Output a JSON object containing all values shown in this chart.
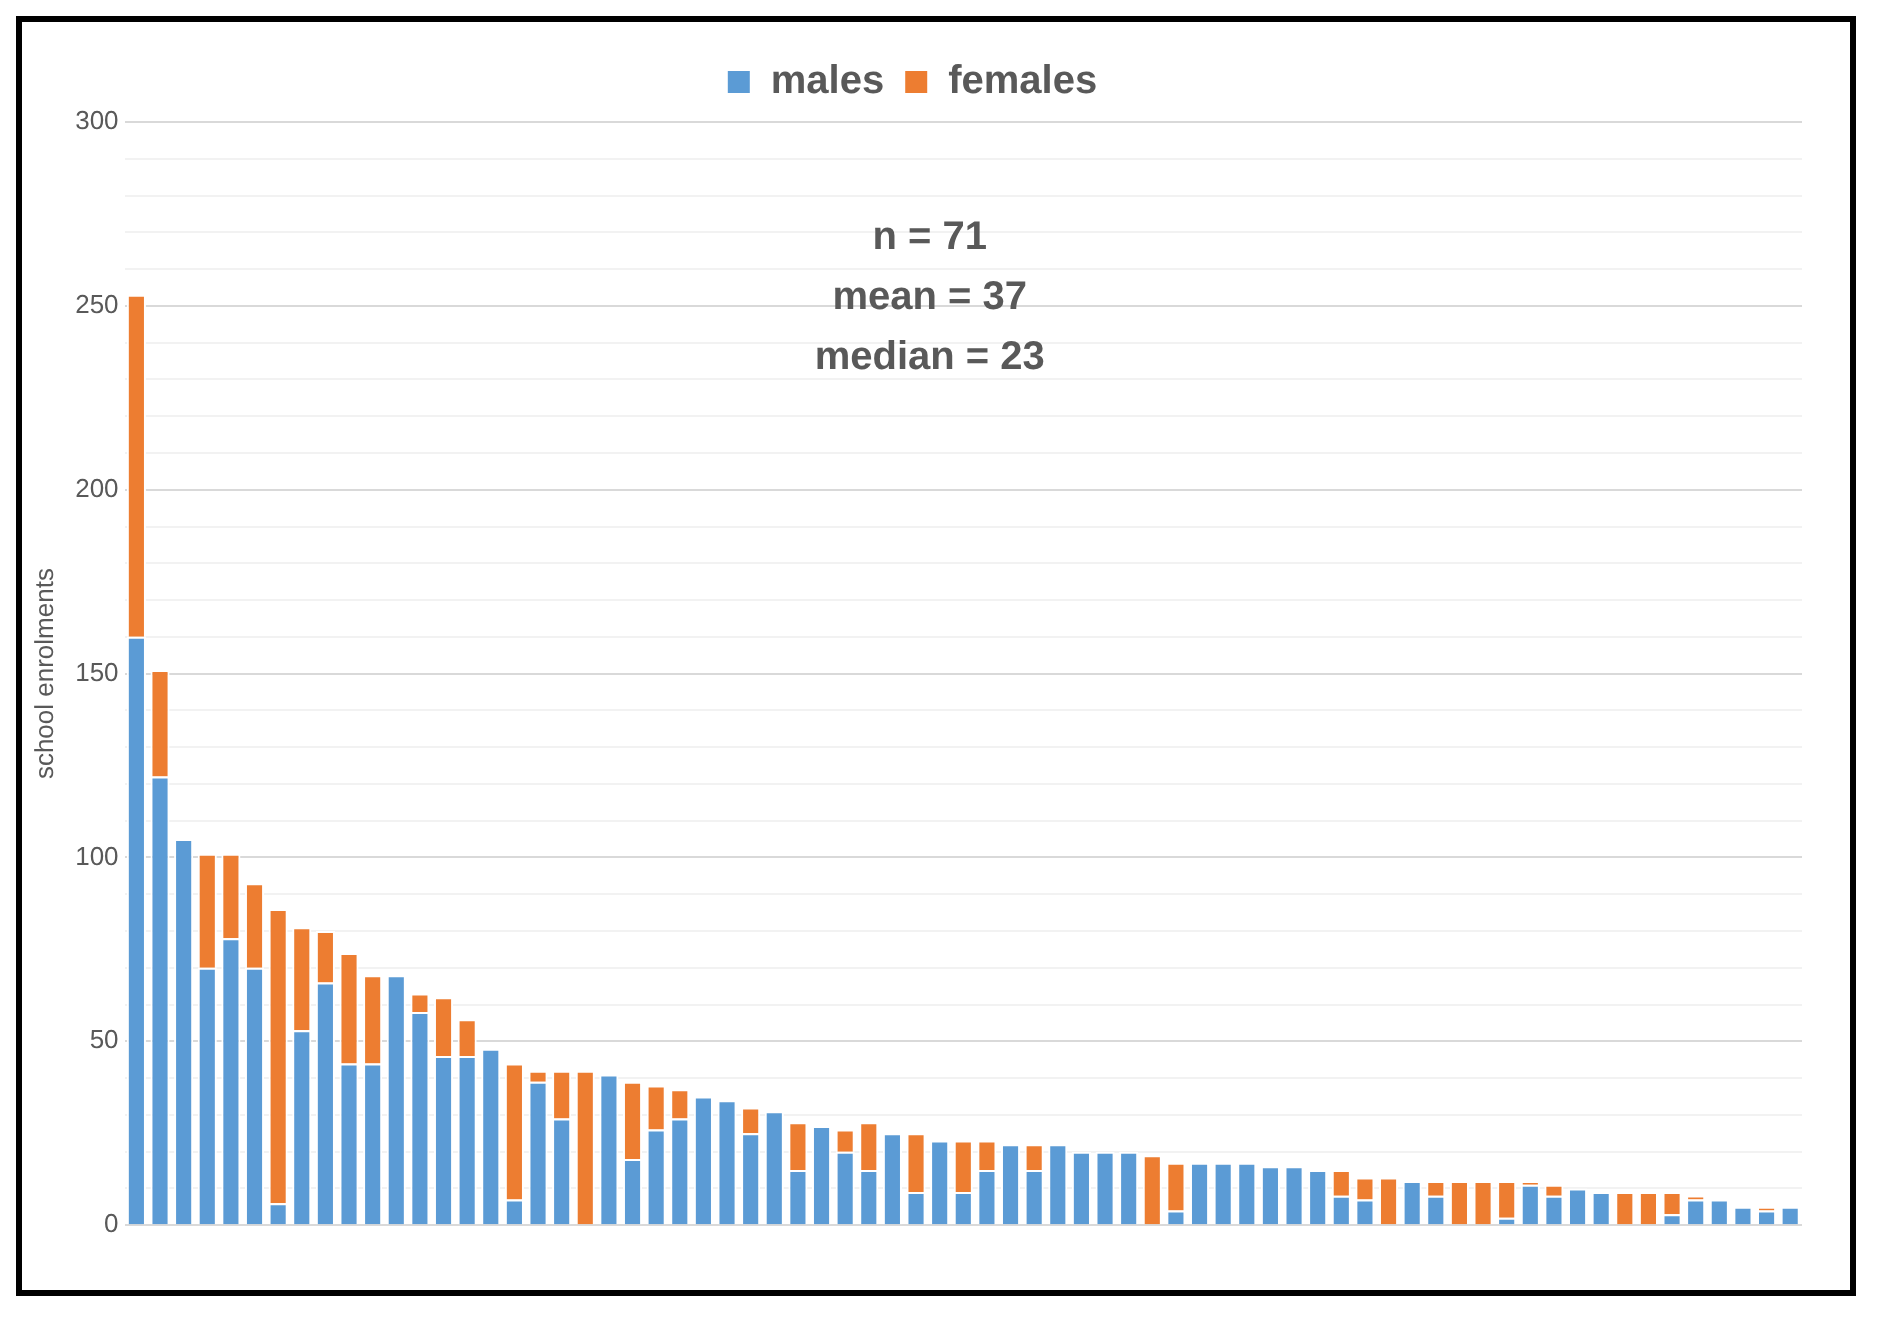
{
  "chart_data": {
    "type": "bar",
    "stacked": true,
    "ylabel": "school enrolments",
    "legend": "top",
    "grid": "y",
    "annotations": [
      "n = 71",
      "mean = 37",
      "median = 23"
    ],
    "categories": [
      null,
      null,
      null,
      null,
      null,
      null,
      null,
      null,
      null,
      null,
      null,
      null,
      null,
      null,
      null,
      null,
      null,
      null,
      null,
      null,
      null,
      null,
      null,
      null,
      null,
      null,
      null,
      null,
      null,
      null,
      null,
      null,
      null,
      null,
      null,
      null,
      null,
      null,
      null,
      null,
      null,
      null,
      null,
      null,
      null,
      null,
      null,
      null,
      null,
      null,
      null,
      null,
      null,
      null,
      null,
      null,
      null,
      null,
      null,
      null,
      null,
      null,
      null,
      null,
      null,
      null,
      null,
      null,
      null,
      null,
      null
    ],
    "ylim": [
      0,
      300
    ],
    "yticks": [
      0,
      {
        "value": 10,
        "label": null
      },
      {
        "value": 20,
        "label": null
      },
      {
        "value": 30,
        "label": null
      },
      {
        "value": 40,
        "label": null
      },
      50,
      {
        "value": 60,
        "label": null
      },
      {
        "value": 70,
        "label": null
      },
      {
        "value": 80,
        "label": null
      },
      {
        "value": 90,
        "label": null
      },
      100,
      {
        "value": 110,
        "label": null
      },
      {
        "value": 120,
        "label": null
      },
      {
        "value": 130,
        "label": null
      },
      {
        "value": 140,
        "label": null
      },
      150,
      {
        "value": 160,
        "label": null
      },
      {
        "value": 170,
        "label": null
      },
      {
        "value": 180,
        "label": null
      },
      {
        "value": 190,
        "label": null
      },
      200,
      {
        "value": 210,
        "label": null
      },
      {
        "value": 220,
        "label": null
      },
      {
        "value": 230,
        "label": null
      },
      {
        "value": 240,
        "label": null
      },
      250,
      {
        "value": 260,
        "label": null
      },
      {
        "value": 270,
        "label": null
      },
      {
        "value": 280,
        "label": null
      },
      {
        "value": 290,
        "label": null
      },
      300
    ],
    "series": [
      {
        "name": "males",
        "color": "#5b9bd5",
        "values": [
          160,
          122,
          105,
          70,
          78,
          70,
          6,
          53,
          66,
          44,
          44,
          68,
          58,
          46,
          46,
          48,
          7,
          39,
          29,
          0,
          41,
          18,
          26,
          29,
          35,
          34,
          25,
          31,
          15,
          27,
          20,
          15,
          25,
          9,
          23,
          9,
          15,
          22,
          15,
          22,
          20,
          20,
          20,
          0,
          4,
          17,
          17,
          17,
          16,
          16,
          15,
          8,
          7,
          0,
          12,
          8,
          0,
          0,
          2,
          11,
          8,
          10,
          9,
          0,
          0,
          3,
          7,
          7,
          5,
          4,
          5
        ]
      },
      {
        "name": "females",
        "color": "#ed7d31",
        "values": [
          93,
          29,
          0,
          31,
          23,
          23,
          80,
          28,
          14,
          30,
          24,
          0,
          5,
          16,
          10,
          0,
          37,
          3,
          13,
          42,
          0,
          21,
          12,
          8,
          0,
          0,
          7,
          0,
          13,
          0,
          6,
          13,
          0,
          16,
          0,
          14,
          8,
          0,
          7,
          0,
          0,
          0,
          0,
          19,
          13,
          0,
          0,
          0,
          0,
          0,
          0,
          7,
          6,
          13,
          0,
          4,
          12,
          12,
          10,
          1,
          3,
          0,
          0,
          9,
          9,
          6,
          1,
          0,
          0,
          1,
          0
        ]
      }
    ]
  }
}
